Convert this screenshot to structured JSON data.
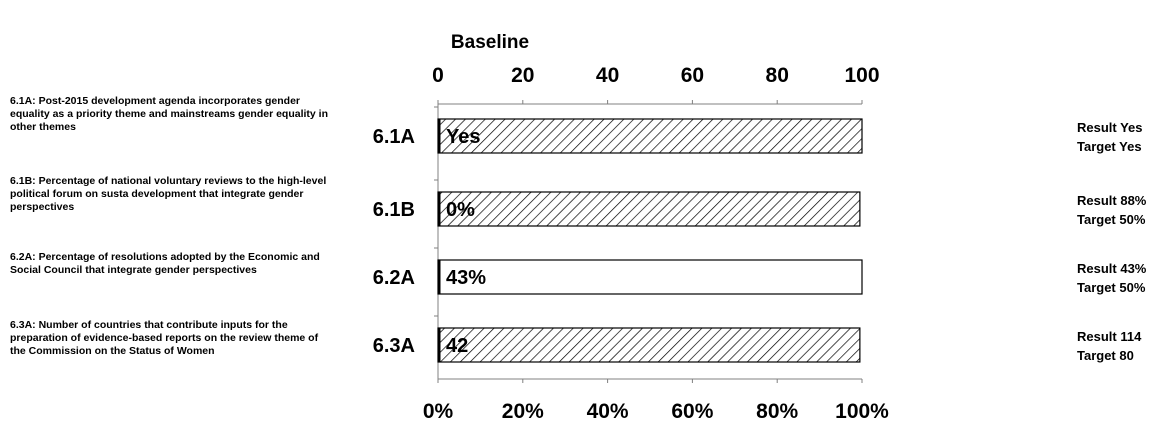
{
  "chart_data": {
    "type": "bar",
    "title": "Baseline",
    "top_axis": {
      "range": [
        0,
        100
      ],
      "ticks": [
        "0",
        "20",
        "40",
        "60",
        "80",
        "100"
      ]
    },
    "bottom_axis": {
      "range": [
        0,
        100
      ],
      "ticks": [
        "0%",
        "20%",
        "40%",
        "60%",
        "80%",
        "100%"
      ]
    },
    "hatch_color": "#000000",
    "rows": [
      {
        "code": "6.1A",
        "description": "6.1A: Post-2015 development agenda incorporates gender equality as a priority theme and mainstreams gender equality in other themes",
        "value": 100,
        "hatched": true,
        "baseline_label": "Yes",
        "result": "Result Yes",
        "target": "Target Yes"
      },
      {
        "code": "6.1B",
        "description": "6.1B: Percentage of national voluntary reviews to the high-level political forum on susta development that integrate gender perspectives",
        "value": 99.5,
        "hatched": true,
        "baseline_label": "0%",
        "result": "Result 88%",
        "target": "Target 50%"
      },
      {
        "code": "6.2A",
        "description": "6.2A: Percentage of resolutions adopted by the Economic and Social Council that integrate gender perspectives",
        "value": 100,
        "hatched": false,
        "baseline_label": "43%",
        "result": "Result 43%",
        "target": "Target 50%"
      },
      {
        "code": "6.3A",
        "description": "6.3A: Number of countries that contribute inputs for the preparation of evidence-based reports on the review theme of the Commission on the Status of Women",
        "value": 99.5,
        "hatched": true,
        "baseline_label": "42",
        "result": "Result 114",
        "target": "Target 80"
      }
    ]
  }
}
